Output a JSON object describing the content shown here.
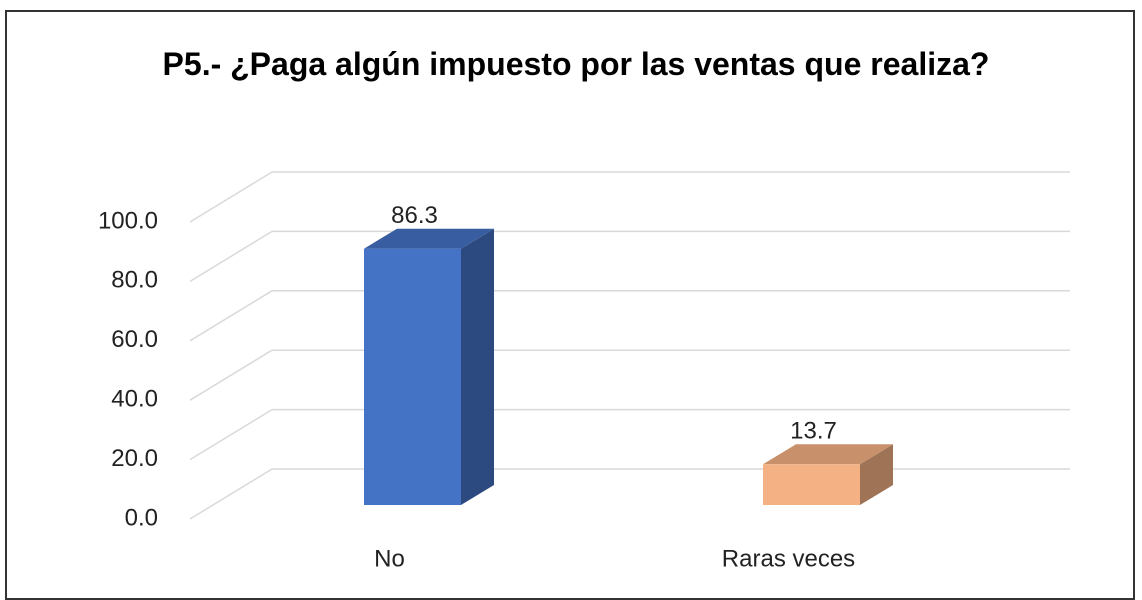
{
  "chart_data": {
    "type": "bar3d",
    "title": "P5.- ¿Paga algún impuesto por las ventas que realiza?",
    "categories": [
      "No",
      "Raras veces"
    ],
    "values": [
      86.3,
      13.7
    ],
    "colors": [
      "#4472c4",
      "#f4b183"
    ],
    "ylim": [
      0,
      100
    ],
    "yticks": [
      {
        "value": 0,
        "label": "0.0"
      },
      {
        "value": 20,
        "label": "20.0"
      },
      {
        "value": 40,
        "label": "40.0"
      },
      {
        "value": 60,
        "label": "60.0"
      },
      {
        "value": 80,
        "label": "80.0"
      },
      {
        "value": 100,
        "label": "100.0"
      }
    ],
    "grid": true
  }
}
